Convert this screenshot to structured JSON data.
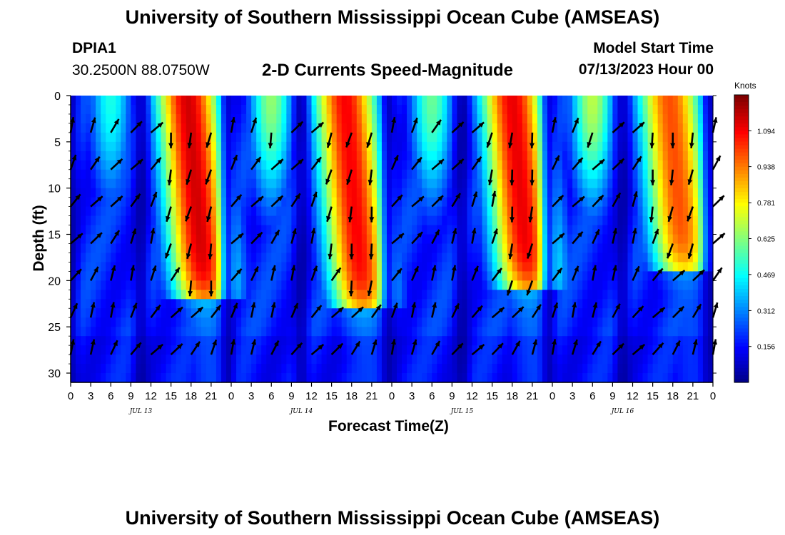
{
  "chart_data": {
    "type": "heatmap",
    "title": "University of Southern Mississippi Ocean Cube (AMSEAS)",
    "subtitle": "2-D Currents Speed-Magnitude",
    "station": {
      "name": "DPIA1",
      "coords": "30.2500N  88.0750W"
    },
    "model_start": {
      "label": "Model Start Time",
      "value": "07/13/2023 Hour 00"
    },
    "xlabel": "Forecast Time(Z)",
    "ylabel": "Depth (ft)",
    "x_ticks": [
      "0",
      "3",
      "6",
      "9",
      "12",
      "15",
      "18",
      "21",
      "0",
      "3",
      "6",
      "9",
      "12",
      "15",
      "18",
      "21",
      "0",
      "3",
      "6",
      "9",
      "12",
      "15",
      "18",
      "21",
      "0",
      "3",
      "6",
      "9",
      "12",
      "15",
      "18",
      "21",
      "0"
    ],
    "date_labels": [
      {
        "label": "JUL 13",
        "hour": 10.5
      },
      {
        "label": "JUL 14",
        "hour": 34.5
      },
      {
        "label": "JUL 15",
        "hour": 58.5
      },
      {
        "label": "JUL 16",
        "hour": 82.5
      }
    ],
    "xlim": [
      0,
      96
    ],
    "ylim": [
      0,
      31
    ],
    "y_ticks": [
      "0",
      "5",
      "10",
      "15",
      "20",
      "25",
      "30"
    ],
    "colorbar": {
      "label": "Knots",
      "ticks": [
        "1.094",
        "0.938",
        "0.781",
        "0.625",
        "0.469",
        "0.312",
        "0.156"
      ],
      "range": [
        0,
        1.25
      ]
    },
    "speed_peaks_hours": [
      {
        "center": 17.5,
        "max_speed": 1.15,
        "depth_extent": 22
      },
      {
        "center": 41,
        "max_speed": 1.1,
        "depth_extent": 23
      },
      {
        "center": 66,
        "max_speed": 1.12,
        "depth_extent": 21
      },
      {
        "center": 89.5,
        "max_speed": 1.0,
        "depth_extent": 19
      }
    ],
    "shallow_moderate_flow_hours": [
      {
        "center": 6,
        "speed": 0.5
      },
      {
        "center": 30,
        "speed": 0.65
      },
      {
        "center": 54,
        "speed": 0.6
      },
      {
        "center": 78,
        "speed": 0.7
      }
    ],
    "slack_hours": [
      0,
      10.5,
      23.5,
      34.5,
      47.5,
      58.5,
      71.5,
      82.5,
      95.5
    ],
    "arrow_hours": [
      0,
      3,
      6,
      9,
      12,
      15,
      18,
      21,
      24,
      27,
      30,
      33,
      36,
      39,
      42,
      45,
      48,
      51,
      54,
      57,
      60,
      63,
      66,
      69,
      72,
      75,
      78,
      81,
      84,
      87,
      90,
      93,
      96
    ],
    "arrow_depths": [
      4,
      8,
      12,
      16,
      20,
      24,
      28
    ]
  },
  "footer_title": "University of Southern Mississippi Ocean Cube (AMSEAS)"
}
